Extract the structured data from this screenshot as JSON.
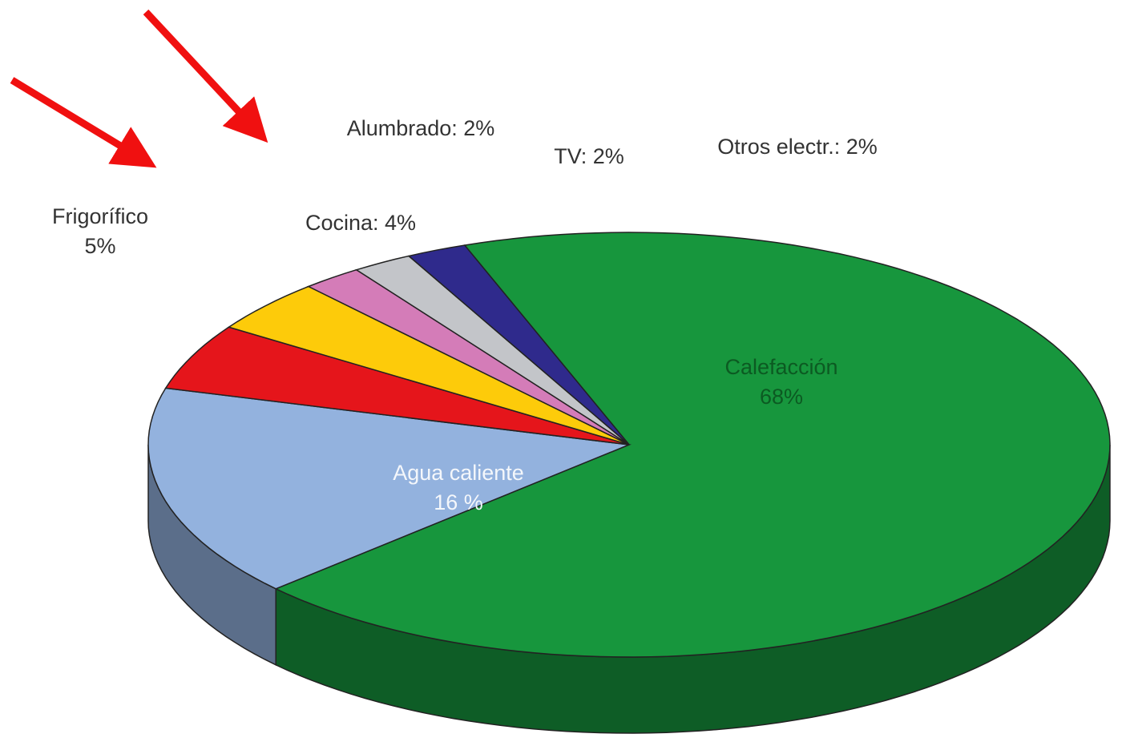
{
  "chart_data": {
    "type": "pie",
    "labels": [
      [
        "Calefacción",
        "68%"
      ],
      [
        "Agua caliente",
        "16 %"
      ],
      [
        "Frigorífico",
        "5%"
      ],
      [
        "Cocina: 4%"
      ],
      [
        "Alumbrado: 2%"
      ],
      [
        "TV: 2%"
      ],
      [
        "Otros electr.: 2%"
      ]
    ],
    "values": [
      68,
      16,
      5,
      4,
      2,
      2,
      2
    ],
    "colors": [
      "#17963d",
      "#93b2de",
      "#e5151b",
      "#fdcb0a",
      "#d47cb8",
      "#c3c5c9",
      "#2f2a8c"
    ]
  }
}
